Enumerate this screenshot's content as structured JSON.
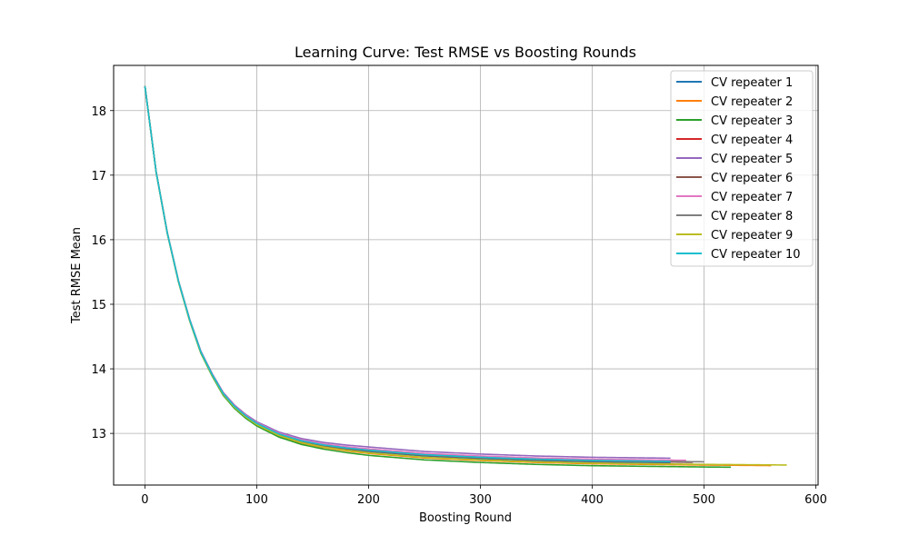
{
  "chart_data": {
    "type": "line",
    "title": "Learning Curve: Test RMSE vs Boosting Rounds",
    "xlabel": "Boosting Round",
    "ylabel": "Test RMSE Mean",
    "xlim": [
      -28,
      602
    ],
    "ylim": [
      12.2,
      18.7
    ],
    "xticks": [
      0,
      100,
      200,
      300,
      400,
      500,
      600
    ],
    "yticks": [
      13,
      14,
      15,
      16,
      17,
      18
    ],
    "grid": true,
    "legend_position": "top-right",
    "curve": {
      "x": [
        0,
        10,
        20,
        30,
        40,
        50,
        60,
        70,
        80,
        90,
        100,
        120,
        140,
        160,
        180,
        200,
        250,
        300,
        350,
        400,
        450,
        500,
        575
      ],
      "y": [
        18.38,
        17.05,
        16.1,
        15.35,
        14.75,
        14.25,
        13.9,
        13.6,
        13.4,
        13.25,
        13.13,
        12.96,
        12.85,
        12.78,
        12.73,
        12.69,
        12.62,
        12.58,
        12.55,
        12.53,
        12.52,
        12.51,
        12.5
      ]
    },
    "series": [
      {
        "name": "CV repeater 1",
        "color": "#1f77b4",
        "end_round": 470,
        "offset": 0.03
      },
      {
        "name": "CV repeater 2",
        "color": "#ff7f0e",
        "end_round": 560,
        "offset": 0.0
      },
      {
        "name": "CV repeater 3",
        "color": "#2ca02c",
        "end_round": 525,
        "offset": -0.03
      },
      {
        "name": "CV repeater 4",
        "color": "#d62728",
        "end_round": 480,
        "offset": 0.06
      },
      {
        "name": "CV repeater 5",
        "color": "#9467bd",
        "end_round": 470,
        "offset": 0.1
      },
      {
        "name": "CV repeater 6",
        "color": "#8c564b",
        "end_round": 490,
        "offset": 0.04
      },
      {
        "name": "CV repeater 7",
        "color": "#e377c2",
        "end_round": 485,
        "offset": 0.07
      },
      {
        "name": "CV repeater 8",
        "color": "#7f7f7f",
        "end_round": 500,
        "offset": 0.05
      },
      {
        "name": "CV repeater 9",
        "color": "#bcbd22",
        "end_round": 575,
        "offset": 0.01
      },
      {
        "name": "CV repeater 10",
        "color": "#17becf",
        "end_round": 470,
        "offset": 0.05
      }
    ]
  }
}
